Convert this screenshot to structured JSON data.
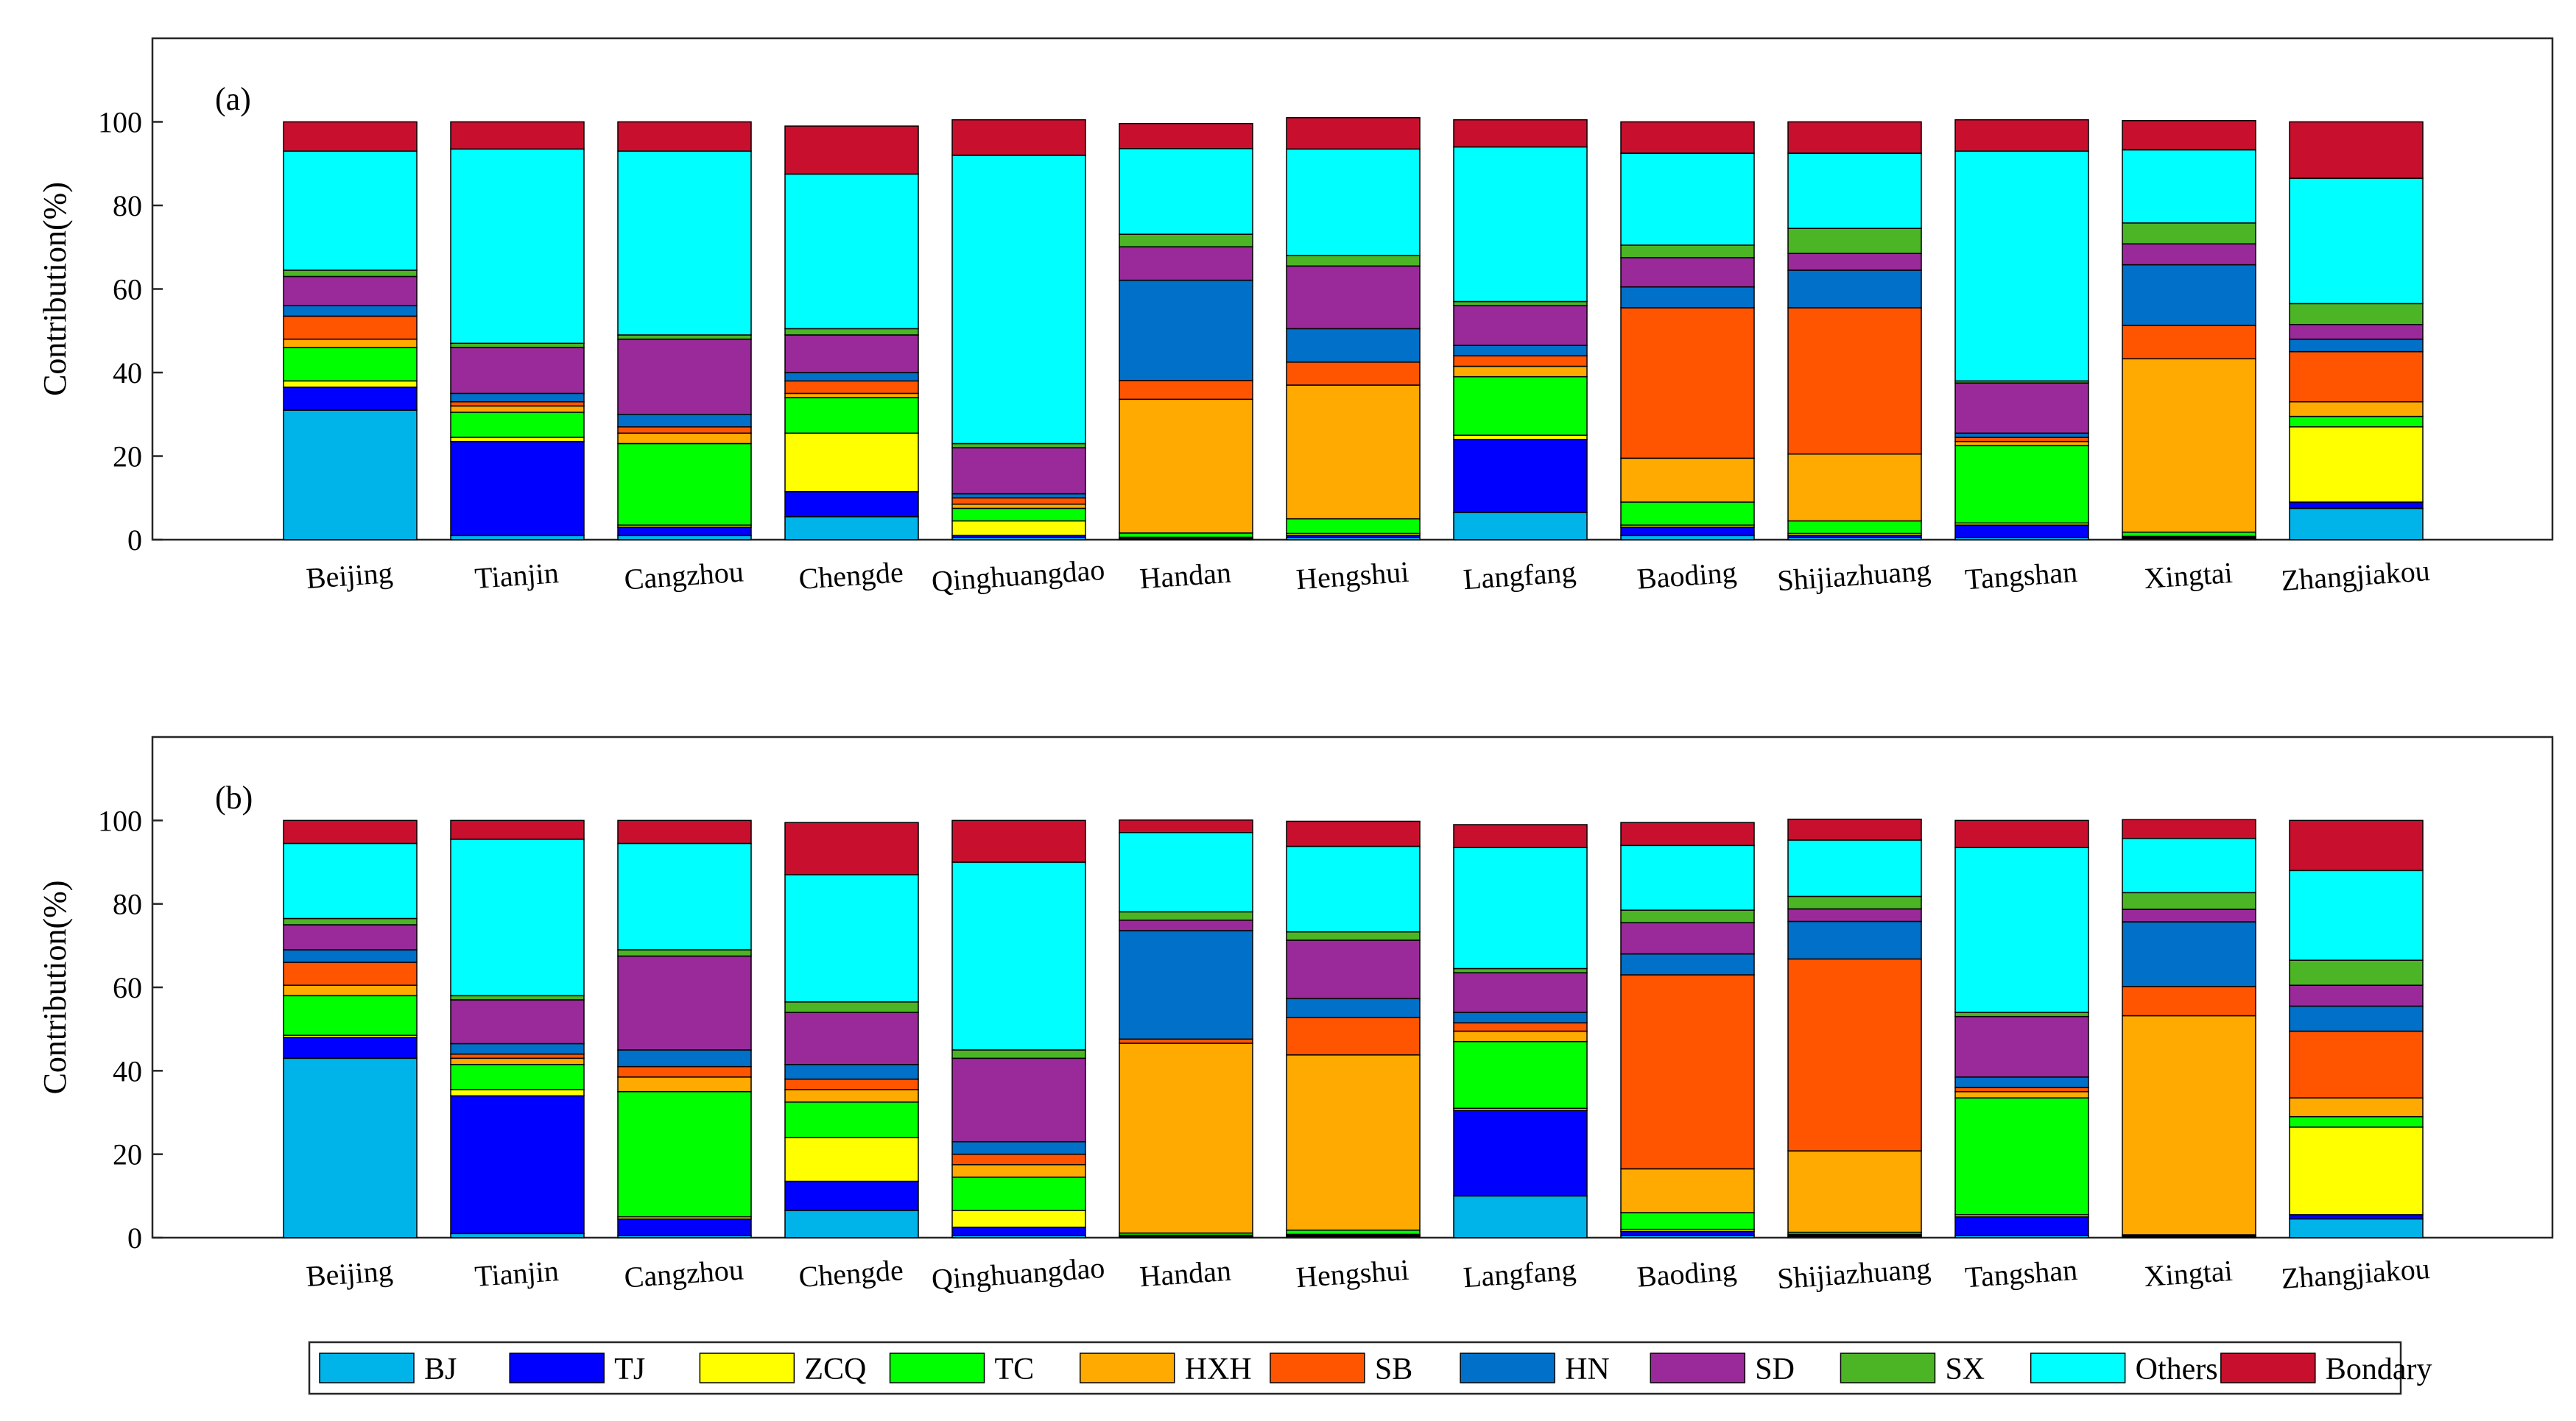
{
  "legend": {
    "labels": [
      "BJ",
      "TJ",
      "ZCQ",
      "TC",
      "HXH",
      "SB",
      "HN",
      "SD",
      "SX",
      "Others",
      "Bondary"
    ],
    "colors": [
      "#00b4ea",
      "#0000ff",
      "#ffff00",
      "#00ff00",
      "#ffaa00",
      "#ff5500",
      "#0070c8",
      "#9a2a9a",
      "#4cb525",
      "#00ffff",
      "#c8102e"
    ]
  },
  "chart_data": [
    {
      "type": "bar",
      "stacked": true,
      "panel_label": "(a)",
      "ylabel": "Contribution(%)",
      "ylim": [
        0,
        120
      ],
      "yticks": [
        "0",
        "20",
        "40",
        "60",
        "80",
        "100"
      ],
      "categories": [
        "Beijing",
        "Tianjin",
        "Cangzhou",
        "Chengde",
        "Qinghuangdao",
        "Handan",
        "Hengshui",
        "Langfang",
        "Baoding",
        "Shijiazhuang",
        "Tangshan",
        "Xingtai",
        "Zhangjiakou"
      ],
      "series": [
        {
          "name": "BJ",
          "values": [
            31,
            1,
            1,
            5.5,
            0.5,
            0.2,
            0.5,
            6.5,
            1,
            0.5,
            0.5,
            0.3,
            7.5
          ]
        },
        {
          "name": "TJ",
          "values": [
            5.5,
            22.5,
            2,
            6,
            0.5,
            0.2,
            0.5,
            17.5,
            2,
            0.5,
            3,
            0.3,
            1.5
          ]
        },
        {
          "name": "ZCQ",
          "values": [
            1.5,
            1,
            0.5,
            14,
            3.5,
            0.2,
            0.5,
            1,
            0.5,
            0.5,
            0.5,
            0.2,
            18
          ]
        },
        {
          "name": "TC",
          "values": [
            8,
            6,
            19.5,
            8.5,
            3,
            1,
            3.5,
            14,
            5.5,
            3,
            18.5,
            1,
            2.5
          ]
        },
        {
          "name": "HXH",
          "values": [
            2,
            1.5,
            2.5,
            1,
            1,
            32,
            32,
            2.5,
            10.5,
            16,
            1,
            41.5,
            3.5
          ]
        },
        {
          "name": "SB",
          "values": [
            5.5,
            1,
            1.5,
            3,
            1.5,
            4.5,
            5.5,
            2.5,
            36,
            35,
            1,
            8,
            12
          ]
        },
        {
          "name": "HN",
          "values": [
            2.5,
            2,
            3,
            2,
            1,
            24,
            8,
            2.5,
            5,
            9,
            1,
            14.5,
            3
          ]
        },
        {
          "name": "SD",
          "values": [
            7,
            11,
            18,
            9,
            11,
            8,
            15,
            9.5,
            7,
            4,
            12,
            5,
            3.5
          ]
        },
        {
          "name": "SX",
          "values": [
            1.5,
            1,
            1,
            1.5,
            1,
            3,
            2.5,
            1,
            3,
            6,
            0.5,
            5,
            5
          ]
        },
        {
          "name": "Others",
          "values": [
            28.5,
            46.5,
            44,
            37,
            69,
            20.5,
            25.5,
            37,
            22,
            18,
            55,
            17.5,
            30
          ]
        },
        {
          "name": "Bondary",
          "values": [
            7,
            6.5,
            7,
            11.5,
            8.5,
            6,
            7.5,
            6.5,
            7.5,
            7.5,
            7.5,
            7,
            13.5
          ]
        }
      ]
    },
    {
      "type": "bar",
      "stacked": true,
      "panel_label": "(b)",
      "ylabel": "Contribution(%)",
      "ylim": [
        0,
        120
      ],
      "yticks": [
        "0",
        "20",
        "40",
        "60",
        "80",
        "100"
      ],
      "categories": [
        "Beijing",
        "Tianjin",
        "Cangzhou",
        "Chengde",
        "Qinghuangdao",
        "Handan",
        "Hengshui",
        "Langfang",
        "Baoding",
        "Shijiazhuang",
        "Tangshan",
        "Xingtai",
        "Zhangjiakou"
      ],
      "series": [
        {
          "name": "BJ",
          "values": [
            43,
            1,
            0.5,
            6.5,
            0.5,
            0.2,
            0.3,
            10,
            0.5,
            0.3,
            0.5,
            0.2,
            4.5
          ]
        },
        {
          "name": "TJ",
          "values": [
            5,
            33,
            4,
            7,
            2,
            0.2,
            0.3,
            20.5,
            1,
            0.3,
            4.5,
            0.2,
            1
          ]
        },
        {
          "name": "ZCQ",
          "values": [
            0.5,
            1.5,
            0.5,
            10.5,
            4,
            0.2,
            0.2,
            0.5,
            0.5,
            0.2,
            0.5,
            0.1,
            21
          ]
        },
        {
          "name": "TC",
          "values": [
            9.5,
            6,
            30,
            8.5,
            8,
            0.5,
            1,
            16,
            4,
            0.5,
            28,
            0.2,
            2.5
          ]
        },
        {
          "name": "HXH",
          "values": [
            2.5,
            1.5,
            3.5,
            3,
            3,
            45.5,
            42,
            2.5,
            10.5,
            19.5,
            1.5,
            52.5,
            4.5
          ]
        },
        {
          "name": "SB",
          "values": [
            5.5,
            1,
            2.5,
            2.5,
            2.5,
            1,
            9,
            2,
            46.5,
            46,
            1,
            7,
            16
          ]
        },
        {
          "name": "HN",
          "values": [
            3,
            2.5,
            4,
            3.5,
            3,
            26,
            4.5,
            2.5,
            5,
            9,
            2.5,
            15.5,
            6
          ]
        },
        {
          "name": "SD",
          "values": [
            6,
            10.5,
            22.5,
            12.5,
            20,
            2.5,
            14,
            9.5,
            7.5,
            3,
            14.5,
            3,
            5
          ]
        },
        {
          "name": "SX",
          "values": [
            1.5,
            1,
            1.5,
            2.5,
            2,
            2,
            2,
            1,
            3,
            3,
            1,
            4,
            6
          ]
        },
        {
          "name": "Others",
          "values": [
            18,
            37.5,
            25.5,
            30.5,
            45,
            19,
            20.5,
            29,
            15.5,
            13.5,
            39.5,
            13,
            21.5
          ]
        },
        {
          "name": "Bondary",
          "values": [
            5.5,
            4.5,
            5.5,
            12.5,
            10,
            3,
            6,
            5.5,
            5.5,
            5,
            6.5,
            4.5,
            12
          ]
        }
      ]
    }
  ]
}
